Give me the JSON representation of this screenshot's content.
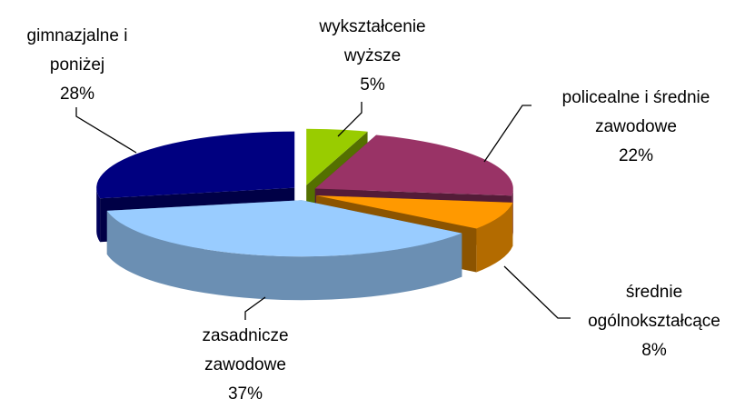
{
  "chart_data": {
    "type": "pie",
    "categories": [
      "wykształcenie wyższe",
      "policealne i średnie zawodowe",
      "średnie ogólnokształcące",
      "zasadnicze zawodowe",
      "gimnazjalne i poniżej"
    ],
    "values": [
      5,
      22,
      8,
      37,
      28
    ],
    "value_labels": [
      "5%",
      "22%",
      "8%",
      "37%",
      "28%"
    ],
    "colors": [
      "#99cc00",
      "#993366",
      "#ff9900",
      "#99ccff",
      "#000080"
    ]
  }
}
